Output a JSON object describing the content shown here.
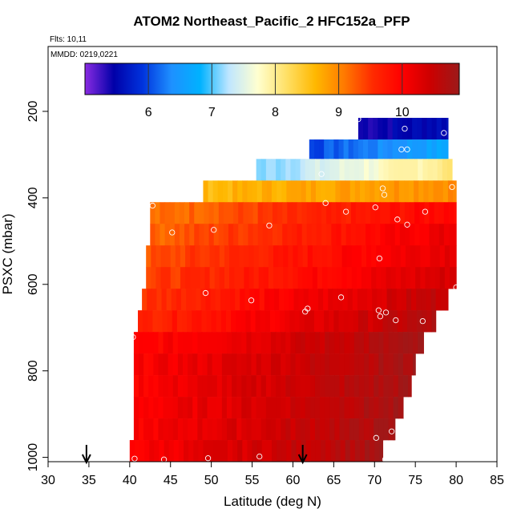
{
  "chart_data": {
    "type": "heatmap",
    "title": "ATOM2 Northeast_Pacific_2 HFC152a_PFP",
    "flights_label": "Flts: 10,11",
    "dates_label": "MMDD: 0219,0221",
    "xlabel": "Latitude (deg N)",
    "ylabel": "PSXC (mbar)",
    "xlim": [
      30,
      85
    ],
    "ylim": [
      1010,
      50
    ],
    "x_ticks": [
      30,
      35,
      40,
      45,
      50,
      55,
      60,
      65,
      70,
      75,
      80,
      85
    ],
    "y_ticks": [
      200,
      400,
      600,
      800,
      1000
    ],
    "colorbar": {
      "range": [
        5.0,
        10.9
      ],
      "ticks": [
        6,
        7,
        8,
        9,
        10
      ],
      "colors": [
        "#8a2be2",
        "#0000a8",
        "#0033dd",
        "#1e90ff",
        "#00b2ff",
        "#bfe6ff",
        "#ffffd0",
        "#ffe066",
        "#ffb800",
        "#ff7a00",
        "#ff2a00",
        "#ff0000",
        "#cc0000",
        "#9b1a1a"
      ]
    },
    "arrows_latitude": [
      34.7,
      61.2
    ],
    "layers": [
      {
        "p_top": 215,
        "p_bot": 265,
        "lat_start": 68.0,
        "lat_end": 79.0,
        "v_start": 5.4,
        "v_end": 5.6
      },
      {
        "p_top": 265,
        "p_bot": 310,
        "lat_start": 62.0,
        "lat_end": 79.0,
        "v_start": 6.0,
        "v_end": 6.7
      },
      {
        "p_top": 310,
        "p_bot": 360,
        "lat_start": 55.5,
        "lat_end": 79.5,
        "v_start": 7.1,
        "v_end": 8.1
      },
      {
        "p_top": 360,
        "p_bot": 410,
        "lat_start": 49.0,
        "lat_end": 80.0,
        "v_start": 8.6,
        "v_end": 9.0
      },
      {
        "p_top": 410,
        "p_bot": 460,
        "lat_start": 42.5,
        "lat_end": 80.0,
        "v_start": 9.1,
        "v_end": 10.0
      },
      {
        "p_top": 460,
        "p_bot": 510,
        "lat_start": 42.5,
        "lat_end": 80.0,
        "v_start": 9.2,
        "v_end": 10.2
      },
      {
        "p_top": 510,
        "p_bot": 560,
        "lat_start": 42.0,
        "lat_end": 80.0,
        "v_start": 9.3,
        "v_end": 10.3
      },
      {
        "p_top": 560,
        "p_bot": 610,
        "lat_start": 42.0,
        "lat_end": 80.0,
        "v_start": 9.4,
        "v_end": 10.4
      },
      {
        "p_top": 610,
        "p_bot": 660,
        "lat_start": 41.5,
        "lat_end": 79.0,
        "v_start": 9.5,
        "v_end": 10.6
      },
      {
        "p_top": 660,
        "p_bot": 710,
        "lat_start": 41.0,
        "lat_end": 77.5,
        "v_start": 9.6,
        "v_end": 10.7
      },
      {
        "p_top": 710,
        "p_bot": 760,
        "lat_start": 40.5,
        "lat_end": 76.0,
        "v_start": 9.9,
        "v_end": 10.8
      },
      {
        "p_top": 760,
        "p_bot": 810,
        "lat_start": 40.5,
        "lat_end": 75.0,
        "v_start": 10.0,
        "v_end": 10.8
      },
      {
        "p_top": 810,
        "p_bot": 860,
        "lat_start": 40.5,
        "lat_end": 74.5,
        "v_start": 10.0,
        "v_end": 10.8
      },
      {
        "p_top": 860,
        "p_bot": 910,
        "lat_start": 40.5,
        "lat_end": 73.5,
        "v_start": 10.0,
        "v_end": 10.8
      },
      {
        "p_top": 910,
        "p_bot": 960,
        "lat_start": 40.5,
        "lat_end": 72.5,
        "v_start": 10.0,
        "v_end": 10.8
      },
      {
        "p_top": 960,
        "p_bot": 1010,
        "lat_start": 40.0,
        "lat_end": 71.0,
        "v_start": 10.0,
        "v_end": 10.8
      }
    ],
    "points": [
      [
        68.0,
        218
      ],
      [
        78.5,
        250
      ],
      [
        73.7,
        240
      ],
      [
        73.3,
        288
      ],
      [
        74.0,
        288
      ],
      [
        63.5,
        345
      ],
      [
        71.0,
        378
      ],
      [
        79.5,
        375
      ],
      [
        71.2,
        393
      ],
      [
        42.8,
        418
      ],
      [
        64.0,
        412
      ],
      [
        66.5,
        432
      ],
      [
        70.1,
        422
      ],
      [
        76.2,
        432
      ],
      [
        72.8,
        450
      ],
      [
        74.0,
        462
      ],
      [
        45.2,
        480
      ],
      [
        50.3,
        474
      ],
      [
        57.1,
        464
      ],
      [
        70.6,
        540
      ],
      [
        49.3,
        620
      ],
      [
        54.9,
        637
      ],
      [
        61.8,
        656
      ],
      [
        61.5,
        663
      ],
      [
        65.9,
        630
      ],
      [
        70.5,
        660
      ],
      [
        70.7,
        674
      ],
      [
        71.4,
        665
      ],
      [
        80.0,
        607
      ],
      [
        72.6,
        683
      ],
      [
        75.9,
        685
      ],
      [
        40.4,
        722
      ],
      [
        70.2,
        955
      ],
      [
        72.1,
        940
      ],
      [
        40.6,
        1003
      ],
      [
        44.2,
        1005
      ],
      [
        49.6,
        1002
      ],
      [
        55.9,
        998
      ],
      [
        71.3,
        1005
      ]
    ]
  }
}
